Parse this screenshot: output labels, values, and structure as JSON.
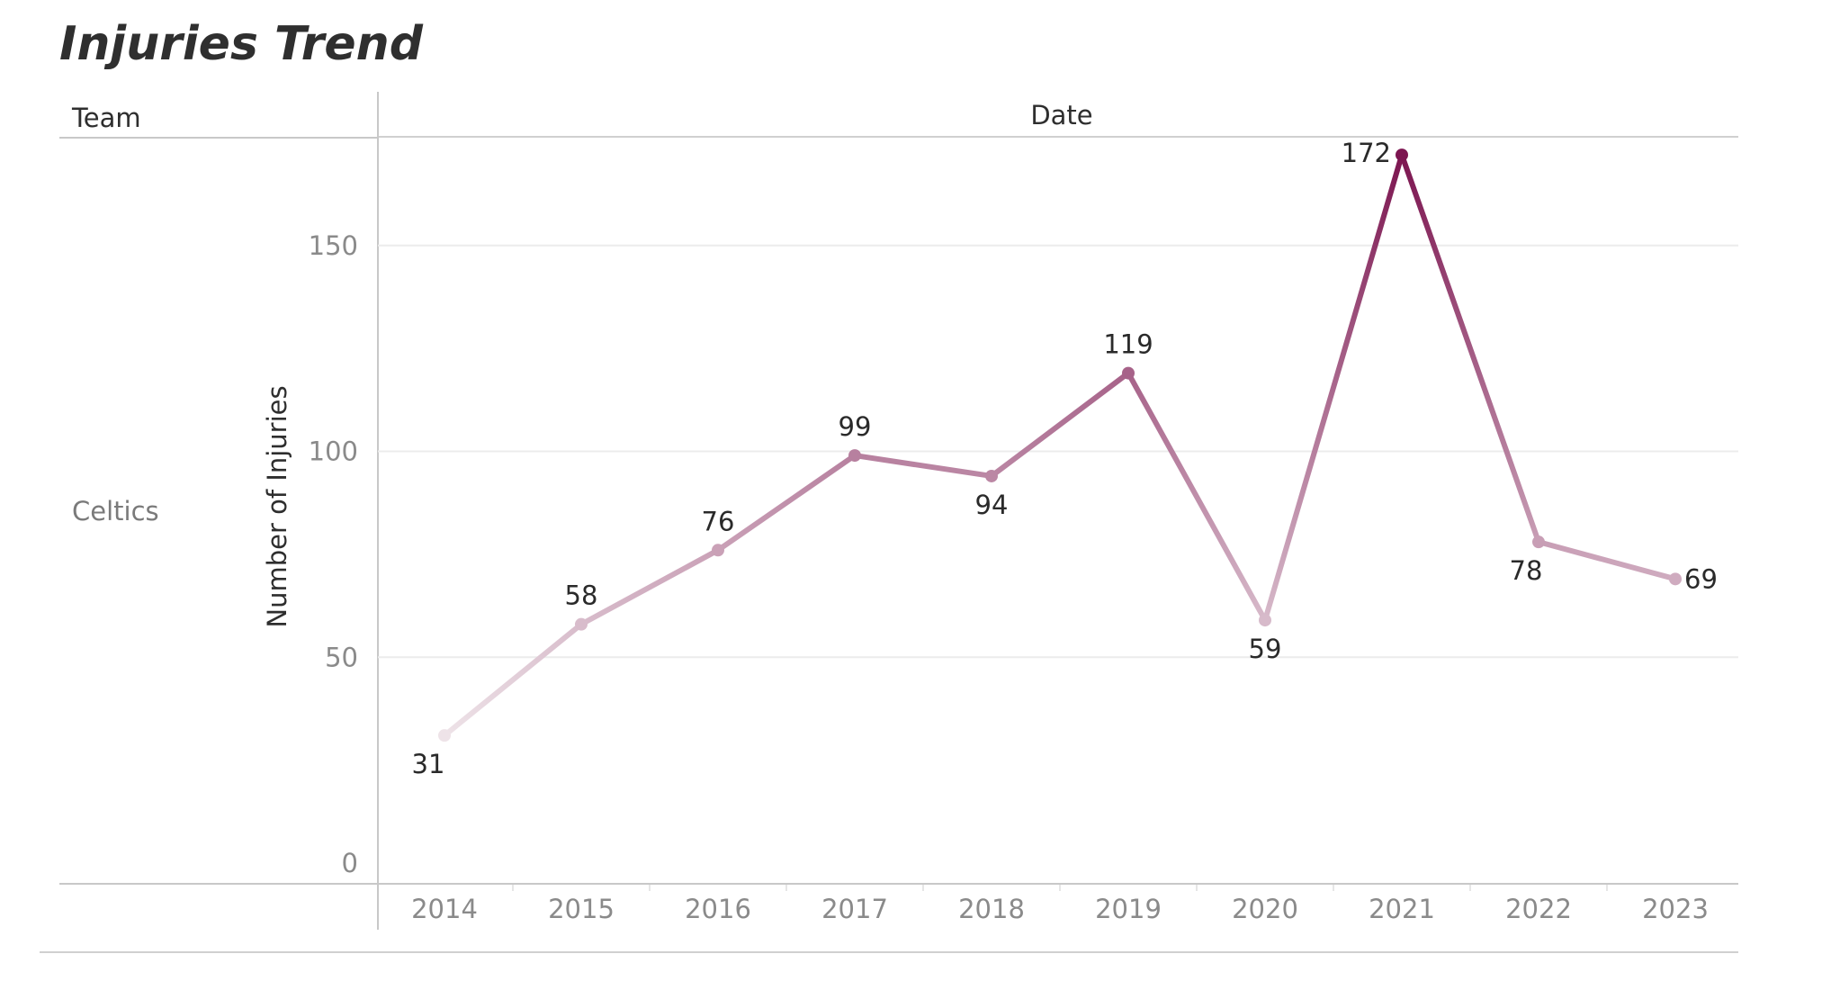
{
  "header": {
    "title": "Injuries Trend",
    "row_dimension_label": "Team",
    "column_dimension_label": "Date"
  },
  "rows": [
    {
      "label": "Celtics"
    }
  ],
  "colors": {
    "palette_light": "#eee3e8",
    "palette_dark": "#7c1550",
    "gridline": "#ececec",
    "divider": "#c8c8c8"
  },
  "chart_data": {
    "type": "line",
    "title": "Injuries Trend",
    "xlabel": "Date",
    "ylabel": "Number of Injuries",
    "categories": [
      "2014",
      "2015",
      "2016",
      "2017",
      "2018",
      "2019",
      "2020",
      "2021",
      "2022",
      "2023"
    ],
    "series": [
      {
        "values": [
          31,
          58,
          76,
          99,
          94,
          119,
          59,
          172,
          78,
          69
        ]
      }
    ],
    "data_labels": [
      "31",
      "58",
      "76",
      "99",
      "94",
      "119",
      "59",
      "172",
      "78",
      "69"
    ],
    "ylim": [
      0,
      180
    ],
    "yticks": [
      0,
      50,
      100,
      150
    ],
    "ytick_labels": [
      "0",
      "50",
      "100",
      "150"
    ],
    "grid": true,
    "color_encoding": "sequential light pink to dark magenta by value",
    "markers": true
  }
}
